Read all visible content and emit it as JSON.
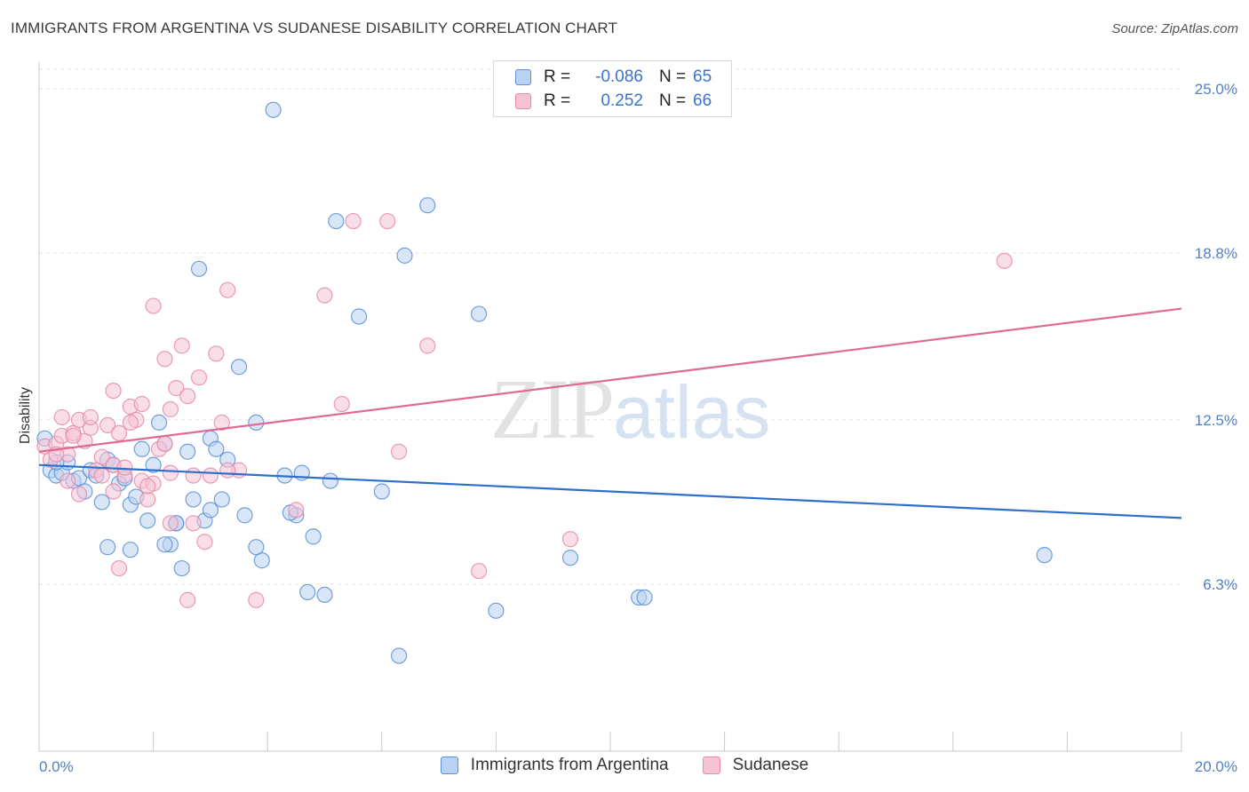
{
  "title": "IMMIGRANTS FROM ARGENTINA VS SUDANESE DISABILITY CORRELATION CHART",
  "source": "Source: ZipAtlas.com",
  "watermark": {
    "zip": "ZIP",
    "atlas": "atlas"
  },
  "legend": {
    "rows": [
      {
        "r_label": "R =",
        "r_value": "-0.086",
        "n_label": "N =",
        "n_value": "65"
      },
      {
        "r_label": "R =",
        "r_value": "0.252",
        "n_label": "N =",
        "n_value": "66"
      }
    ]
  },
  "bottom_legend": [
    "Immigrants from Argentina",
    "Sudanese"
  ],
  "colors": {
    "argentina": "#5b8fd6",
    "argentina_fill": "#b9d1f3",
    "argentina_line": "#2f6fcc",
    "sudanese": "#e88aa8",
    "sudanese_fill": "#f6c3d3",
    "sudanese_line": "#e06a94",
    "grid": "#e3e3e3",
    "axis_text": "#4f80c8"
  },
  "chart_data": {
    "type": "scatter",
    "title": "IMMIGRANTS FROM ARGENTINA VS SUDANESE DISABILITY CORRELATION CHART",
    "xlabel": "",
    "ylabel": "Disability",
    "xlim": [
      0,
      20
    ],
    "ylim": [
      0,
      26
    ],
    "x_tick_labels": [
      "0.0%",
      "20.0%"
    ],
    "y_ticks": [
      6.3,
      12.5,
      18.8,
      25.0
    ],
    "y_tick_labels": [
      "6.3%",
      "12.5%",
      "18.8%",
      "25.0%"
    ],
    "grid": true,
    "legend_position": "top-center",
    "series": [
      {
        "name": "Immigrants from Argentina",
        "trend": {
          "x": [
            0,
            20
          ],
          "y": [
            10.8,
            8.8
          ]
        },
        "points": [
          [
            0.1,
            11.8
          ],
          [
            0.2,
            10.6
          ],
          [
            0.3,
            10.4
          ],
          [
            0.4,
            10.5
          ],
          [
            0.5,
            10.9
          ],
          [
            0.6,
            10.2
          ],
          [
            0.7,
            10.3
          ],
          [
            0.8,
            9.8
          ],
          [
            0.9,
            10.6
          ],
          [
            1.0,
            10.4
          ],
          [
            1.1,
            9.4
          ],
          [
            1.2,
            11.0
          ],
          [
            1.3,
            10.8
          ],
          [
            1.4,
            10.1
          ],
          [
            1.5,
            10.3
          ],
          [
            1.6,
            9.3
          ],
          [
            1.7,
            9.6
          ],
          [
            1.8,
            11.4
          ],
          [
            1.9,
            8.7
          ],
          [
            2.0,
            10.8
          ],
          [
            2.1,
            12.4
          ],
          [
            2.2,
            11.6
          ],
          [
            2.3,
            7.8
          ],
          [
            2.4,
            8.6
          ],
          [
            2.5,
            6.9
          ],
          [
            2.6,
            11.3
          ],
          [
            2.7,
            9.5
          ],
          [
            2.8,
            18.2
          ],
          [
            2.9,
            8.7
          ],
          [
            3.0,
            11.8
          ],
          [
            3.1,
            11.4
          ],
          [
            3.2,
            9.5
          ],
          [
            3.3,
            11.0
          ],
          [
            3.5,
            14.5
          ],
          [
            3.6,
            8.9
          ],
          [
            3.8,
            12.4
          ],
          [
            3.9,
            7.2
          ],
          [
            4.1,
            24.2
          ],
          [
            4.3,
            10.4
          ],
          [
            4.5,
            8.9
          ],
          [
            4.6,
            10.5
          ],
          [
            4.7,
            6.0
          ],
          [
            4.8,
            8.1
          ],
          [
            5.0,
            5.9
          ],
          [
            5.1,
            10.2
          ],
          [
            5.2,
            20.0
          ],
          [
            5.6,
            16.4
          ],
          [
            6.0,
            9.8
          ],
          [
            6.3,
            3.6
          ],
          [
            6.4,
            18.7
          ],
          [
            6.8,
            20.6
          ],
          [
            7.7,
            16.5
          ],
          [
            8.0,
            5.3
          ],
          [
            9.3,
            7.3
          ],
          [
            10.5,
            5.8
          ],
          [
            10.6,
            5.8
          ],
          [
            17.6,
            7.4
          ],
          [
            1.2,
            7.7
          ],
          [
            1.6,
            7.6
          ],
          [
            2.2,
            7.8
          ],
          [
            3.8,
            7.7
          ],
          [
            4.4,
            9.0
          ],
          [
            3.0,
            9.1
          ],
          [
            0.3,
            10.9
          ],
          [
            2.4,
            8.6
          ]
        ]
      },
      {
        "name": "Sudanese",
        "trend": {
          "x": [
            0,
            20
          ],
          "y": [
            11.3,
            16.7
          ]
        },
        "points": [
          [
            0.1,
            11.5
          ],
          [
            0.2,
            11.0
          ],
          [
            0.3,
            11.6
          ],
          [
            0.4,
            11.9
          ],
          [
            0.5,
            11.2
          ],
          [
            0.6,
            12.0
          ],
          [
            0.7,
            12.5
          ],
          [
            0.8,
            11.7
          ],
          [
            0.9,
            12.2
          ],
          [
            1.0,
            10.6
          ],
          [
            1.1,
            11.1
          ],
          [
            1.2,
            12.3
          ],
          [
            1.3,
            10.8
          ],
          [
            1.4,
            12.0
          ],
          [
            1.5,
            10.4
          ],
          [
            1.6,
            13.0
          ],
          [
            1.7,
            12.5
          ],
          [
            1.8,
            10.2
          ],
          [
            1.9,
            9.5
          ],
          [
            2.0,
            10.1
          ],
          [
            2.1,
            11.4
          ],
          [
            2.2,
            14.8
          ],
          [
            2.3,
            12.9
          ],
          [
            2.4,
            13.7
          ],
          [
            2.5,
            15.3
          ],
          [
            2.6,
            13.4
          ],
          [
            2.7,
            10.4
          ],
          [
            2.8,
            14.1
          ],
          [
            2.9,
            7.9
          ],
          [
            3.0,
            10.4
          ],
          [
            3.1,
            15.0
          ],
          [
            3.2,
            12.4
          ],
          [
            3.3,
            17.4
          ],
          [
            3.5,
            10.6
          ],
          [
            3.8,
            5.7
          ],
          [
            4.5,
            9.1
          ],
          [
            5.0,
            17.2
          ],
          [
            5.3,
            13.1
          ],
          [
            5.5,
            20.0
          ],
          [
            6.1,
            20.0
          ],
          [
            6.3,
            11.3
          ],
          [
            6.8,
            15.3
          ],
          [
            7.7,
            6.8
          ],
          [
            9.3,
            8.0
          ],
          [
            16.9,
            18.5
          ],
          [
            1.3,
            13.6
          ],
          [
            0.7,
            9.7
          ],
          [
            1.4,
            6.9
          ],
          [
            2.6,
            5.7
          ],
          [
            2.7,
            8.6
          ],
          [
            1.1,
            10.4
          ],
          [
            2.3,
            8.6
          ],
          [
            0.3,
            11.2
          ],
          [
            0.5,
            10.2
          ],
          [
            2.0,
            16.8
          ],
          [
            1.8,
            13.1
          ],
          [
            2.2,
            11.6
          ],
          [
            1.6,
            12.4
          ],
          [
            1.9,
            10.0
          ],
          [
            0.9,
            12.6
          ],
          [
            0.6,
            11.9
          ],
          [
            0.4,
            12.6
          ],
          [
            3.3,
            10.6
          ],
          [
            2.3,
            10.5
          ],
          [
            1.5,
            10.7
          ],
          [
            1.3,
            9.8
          ]
        ]
      }
    ]
  }
}
